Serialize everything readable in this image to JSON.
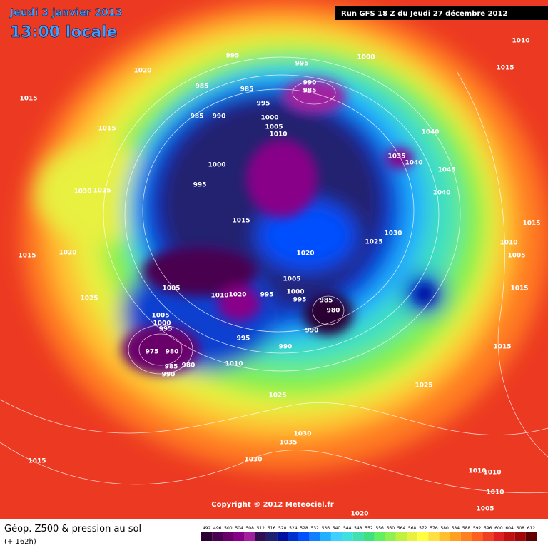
{
  "header": {
    "date": "Jeudi 3 janvier 2013",
    "time": "13:00 locale",
    "run": "Run GFS 18 Z du Jeudi 27 décembre 2012"
  },
  "copyright": "Copyright © 2012 Meteociel.fr",
  "footer": {
    "title": "Géop. Z500 & pression au sol",
    "lead": "(+ 162h)"
  },
  "scale": {
    "values": [
      492,
      496,
      500,
      504,
      508,
      512,
      516,
      520,
      524,
      528,
      532,
      536,
      540,
      544,
      548,
      552,
      556,
      560,
      564,
      568,
      572,
      576,
      580,
      584,
      588,
      592,
      596,
      600,
      604,
      608,
      612
    ],
    "colors": [
      "#2a0030",
      "#4a0050",
      "#6a006a",
      "#880088",
      "#a020a0",
      "#301050",
      "#202070",
      "#0010a0",
      "#0030d0",
      "#0050ff",
      "#1080ff",
      "#20b0ff",
      "#40d0ff",
      "#40e0e0",
      "#40e0b0",
      "#40e080",
      "#60f060",
      "#90f050",
      "#c0f040",
      "#e8f040",
      "#ffff40",
      "#ffe040",
      "#ffc030",
      "#ffa020",
      "#ff8020",
      "#ff6020",
      "#f04020",
      "#e02020",
      "#c01010",
      "#a00808",
      "#600000"
    ]
  },
  "isobar_labels": [
    "1010",
    "1015",
    "1020",
    "995",
    "995",
    "1000",
    "1015",
    "985",
    "985",
    "990",
    "985",
    "985",
    "990",
    "995",
    "1000",
    "1005",
    "1010",
    "1015",
    "1040",
    "1035",
    "1040",
    "1045",
    "1030",
    "1025",
    "1000",
    "995",
    "1040",
    "1015",
    "1015",
    "1030",
    "1025",
    "1010",
    "1015",
    "1020",
    "1020",
    "1005",
    "1005",
    "1005",
    "1015",
    "1025",
    "1010",
    "1020",
    "995",
    "1000",
    "995",
    "985",
    "980",
    "1005",
    "1000",
    "995",
    "990",
    "995",
    "990",
    "1015",
    "975",
    "980",
    "985",
    "980",
    "990",
    "1010",
    "1025",
    "1025",
    "1030",
    "1035",
    "1015",
    "1030",
    "1010",
    "1010",
    "1010",
    "1005",
    "1020"
  ]
}
